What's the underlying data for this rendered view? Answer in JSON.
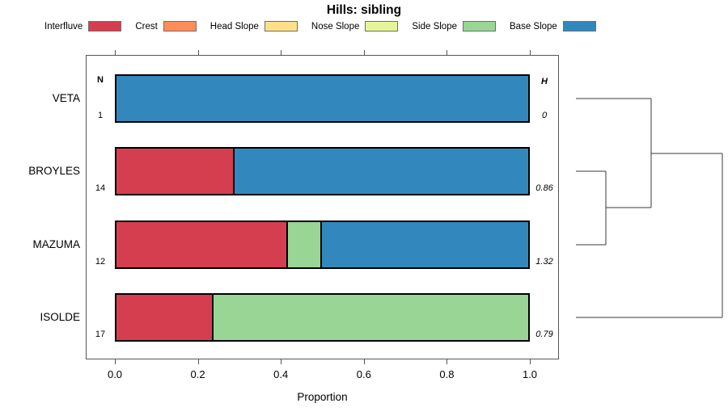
{
  "legend": {
    "items": [
      {
        "label": "Interfluve",
        "color": "#D53E4F"
      },
      {
        "label": "Crest",
        "color": "#FC8D59"
      },
      {
        "label": "Head Slope",
        "color": "#FEE08B"
      },
      {
        "label": "Nose Slope",
        "color": "#E6F598"
      },
      {
        "label": "Side Slope",
        "color": "#99D594"
      },
      {
        "label": "Base Slope",
        "color": "#3288BD"
      }
    ]
  },
  "chart_data": {
    "type": "bar",
    "orientation": "horizontal",
    "stacked": true,
    "title": "Hills: sibling",
    "xlabel": "Proportion",
    "xlim": [
      0.0,
      1.0
    ],
    "x_ticks": [
      0.0,
      0.2,
      0.4,
      0.6,
      0.8,
      1.0
    ],
    "x_tick_labels": [
      "0.0",
      "0.2",
      "0.4",
      "0.6",
      "0.8",
      "1.0"
    ],
    "categories": [
      "Interfluve",
      "Crest",
      "Head Slope",
      "Nose Slope",
      "Side Slope",
      "Base Slope"
    ],
    "n_header": "N",
    "h_header": "H",
    "rows": [
      {
        "label": "VETA",
        "n": "1",
        "h": "0",
        "segments": [
          {
            "category": "Base Slope",
            "value": 1.0
          }
        ]
      },
      {
        "label": "BROYLES",
        "n": "14",
        "h": "0.86",
        "segments": [
          {
            "category": "Interfluve",
            "value": 0.286
          },
          {
            "category": "Base Slope",
            "value": 0.714
          }
        ]
      },
      {
        "label": "MAZUMA",
        "n": "12",
        "h": "1.32",
        "segments": [
          {
            "category": "Interfluve",
            "value": 0.417
          },
          {
            "category": "Side Slope",
            "value": 0.083
          },
          {
            "category": "Base Slope",
            "value": 0.5
          }
        ]
      },
      {
        "label": "ISOLDE",
        "n": "17",
        "h": "0.79",
        "segments": [
          {
            "category": "Interfluve",
            "value": 0.235
          },
          {
            "category": "Side Slope",
            "value": 0.765
          }
        ]
      }
    ],
    "dendrogram": {
      "topology": "((VETA,(BROYLES,MAZUMA)),ISOLDE)",
      "segments": [
        [
          712,
          122,
          805,
          122
        ],
        [
          805,
          122,
          805,
          257
        ],
        [
          712,
          212,
          749,
          212
        ],
        [
          712,
          303,
          749,
          303
        ],
        [
          749,
          212,
          749,
          303
        ],
        [
          749,
          257,
          805,
          257
        ],
        [
          805,
          190,
          893,
          190
        ],
        [
          712,
          393,
          893,
          393
        ],
        [
          893,
          190,
          893,
          393
        ]
      ]
    }
  }
}
